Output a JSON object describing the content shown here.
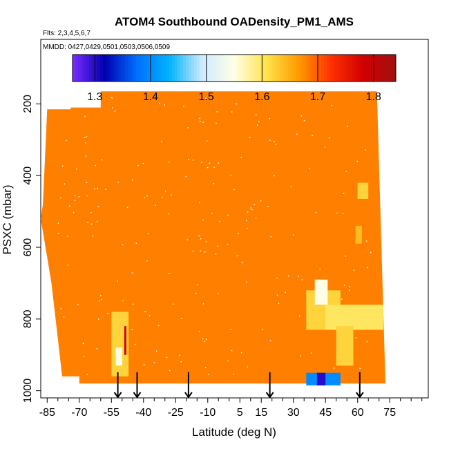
{
  "chart_data": {
    "type": "heatmap",
    "title": "ATOM4 Southbound OADensity_PM1_AMS",
    "flights_note": "Flts: 2,3,4,5,6,7",
    "dates_note": "MMDD: 0427,0429,0501,0503,0506,0509",
    "xlabel": "Latitude (deg N)",
    "ylabel": "PSXC (mbar)",
    "xlim": [
      -88,
      93
    ],
    "ylim": [
      1020,
      20
    ],
    "y_reversed": true,
    "x_ticks": [
      "-85",
      "-70",
      "-55",
      "-40",
      "-25",
      "-10",
      "5",
      "15",
      "30",
      "45",
      "60",
      "75"
    ],
    "x_tick_values": [
      -85,
      -70,
      -55,
      -40,
      -25,
      -10,
      5,
      15,
      30,
      45,
      60,
      75
    ],
    "y_ticks": [
      "200",
      "400",
      "600",
      "800",
      "1000"
    ],
    "y_tick_values": [
      200,
      400,
      600,
      800,
      1000
    ],
    "colorbar": {
      "range": [
        1.26,
        1.84
      ],
      "tick_labels": [
        "1.3",
        "1.4",
        "1.5",
        "1.6",
        "1.7",
        "1.8"
      ],
      "tick_values": [
        1.3,
        1.4,
        1.5,
        1.6,
        1.7,
        1.8
      ],
      "colors": [
        "#7a2bff",
        "#0000b0",
        "#0070ff",
        "#00b4ff",
        "#cdeaff",
        "#ffffe6",
        "#ffe24a",
        "#ff9a00",
        "#ff3000",
        "#d00000",
        "#a01010"
      ]
    },
    "background_value": 1.68,
    "flight_region": [
      [
        -85,
        215
      ],
      [
        -74,
        215
      ],
      [
        -74,
        210
      ],
      [
        -60,
        210
      ],
      [
        -60,
        165
      ],
      [
        69,
        165
      ],
      [
        73,
        980
      ],
      [
        -70,
        980
      ],
      [
        -70,
        960
      ],
      [
        -78,
        960
      ],
      [
        -83,
        700
      ],
      [
        -88,
        520
      ],
      [
        -87,
        480
      ],
      [
        -85,
        215
      ]
    ],
    "patches": [
      {
        "x": [
          -55,
          -47
        ],
        "y": [
          780,
          960
        ],
        "value": 1.62
      },
      {
        "x": [
          -53,
          -50
        ],
        "y": [
          880,
          930
        ],
        "value": 1.55
      },
      {
        "x": [
          -49,
          -48
        ],
        "y": [
          820,
          900
        ],
        "value": 1.78
      },
      {
        "x": [
          36,
          52
        ],
        "y": [
          720,
          830
        ],
        "value": 1.62
      },
      {
        "x": [
          40,
          46
        ],
        "y": [
          690,
          760
        ],
        "value": 1.55
      },
      {
        "x": [
          45,
          72
        ],
        "y": [
          760,
          830
        ],
        "value": 1.6
      },
      {
        "x": [
          50,
          58
        ],
        "y": [
          820,
          930
        ],
        "value": 1.62
      },
      {
        "x": [
          60,
          65
        ],
        "y": [
          420,
          465
        ],
        "value": 1.62
      },
      {
        "x": [
          59,
          62
        ],
        "y": [
          540,
          590
        ],
        "value": 1.64
      },
      {
        "x": [
          36,
          52
        ],
        "y": [
          950,
          985
        ],
        "value": 1.4
      },
      {
        "x": [
          41,
          45
        ],
        "y": [
          950,
          985
        ],
        "value": 1.3
      }
    ],
    "arrows_x": [
      -52,
      -43,
      -19,
      19,
      61
    ],
    "grid": false,
    "legend": "colorbar-top"
  }
}
